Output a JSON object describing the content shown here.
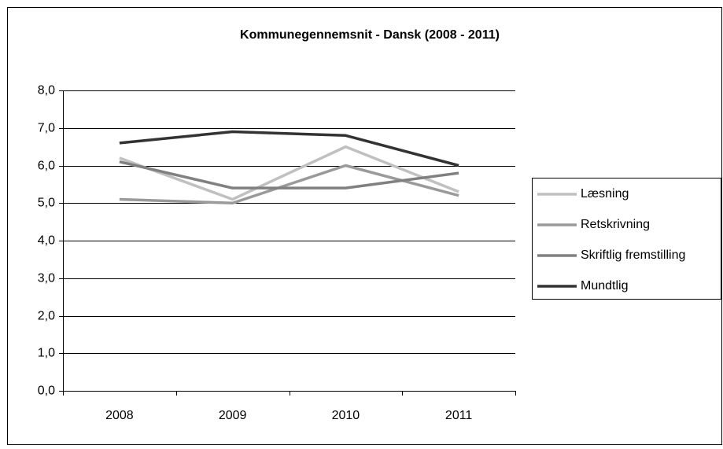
{
  "chart_data": {
    "type": "line",
    "title": "Kommunegennemsnit - Dansk (2008 - 2011)",
    "categories": [
      "2008",
      "2009",
      "2010",
      "2011"
    ],
    "series": [
      {
        "name": "Læsning",
        "color": "#c0c0c0",
        "values": [
          6.2,
          5.1,
          6.5,
          5.3
        ]
      },
      {
        "name": "Retskrivning",
        "color": "#9a9a9a",
        "values": [
          5.1,
          5.0,
          6.0,
          5.2
        ]
      },
      {
        "name": "Skriftlig fremstilling",
        "color": "#808080",
        "values": [
          6.1,
          5.4,
          5.4,
          5.8
        ]
      },
      {
        "name": "Mundtlig",
        "color": "#333333",
        "values": [
          6.6,
          6.9,
          6.8,
          6.0
        ]
      }
    ],
    "ylim": [
      0,
      8
    ],
    "yticks": [
      {
        "value": 0,
        "label": "0,0"
      },
      {
        "value": 1,
        "label": "1,0"
      },
      {
        "value": 2,
        "label": "2,0"
      },
      {
        "value": 3,
        "label": "3,0"
      },
      {
        "value": 4,
        "label": "4,0"
      },
      {
        "value": 5,
        "label": "5,0"
      },
      {
        "value": 6,
        "label": "6,0"
      },
      {
        "value": 7,
        "label": "7,0"
      },
      {
        "value": 8,
        "label": "8,0"
      }
    ],
    "grid": true,
    "legend": "right"
  }
}
